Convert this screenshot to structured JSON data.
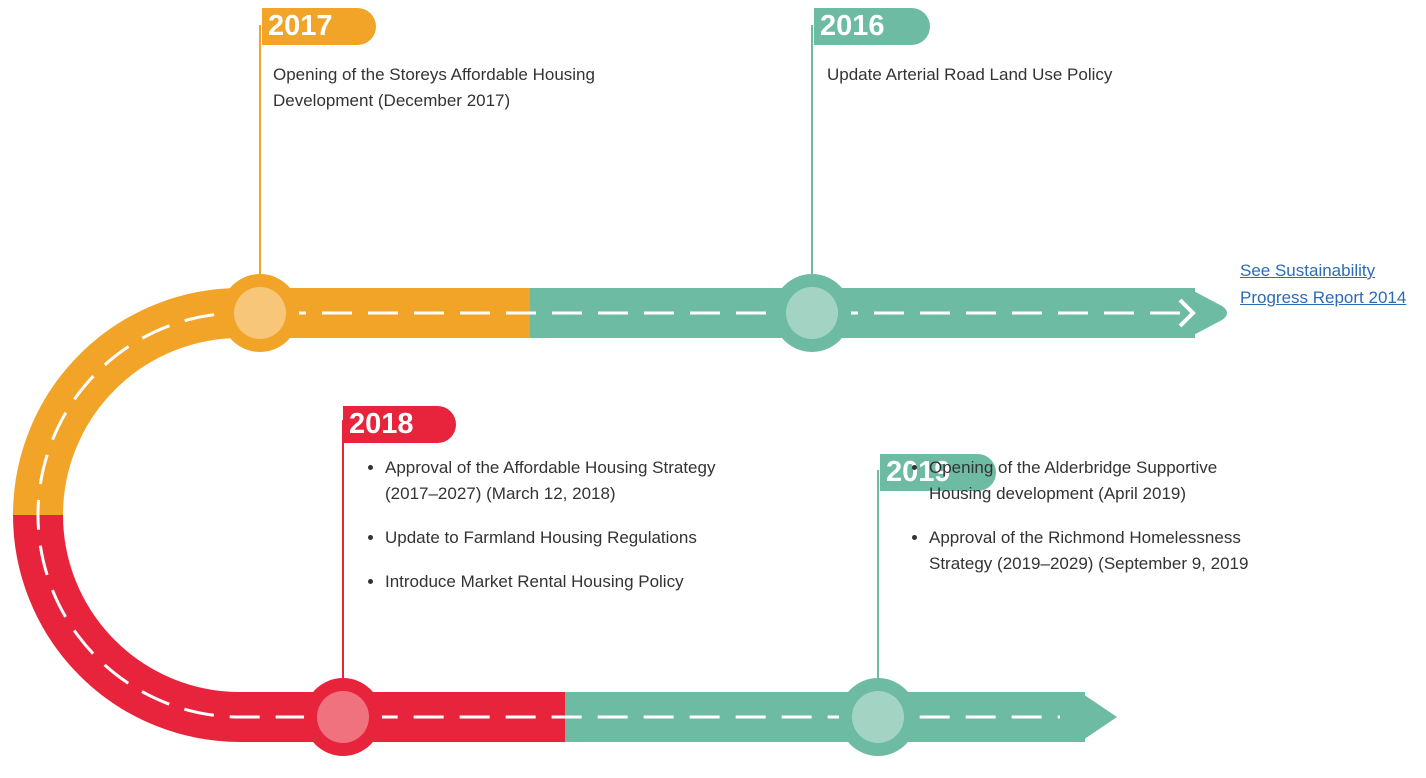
{
  "milestones": [
    {
      "year": "2017",
      "items": [
        "Opening of the Storeys Affordable Housing Development (December 2017)"
      ]
    },
    {
      "year": "2016",
      "items": [
        "Update Arterial Road Land Use Policy"
      ]
    },
    {
      "year": "2018",
      "items": [
        "Approval of the Affordable Housing Strategy (2017–2027) (March 12, 2018)",
        "Update to Farmland Housing Regulations",
        "Introduce Market Rental Housing Policy"
      ]
    },
    {
      "year": "2019",
      "items": [
        "Opening of the Alderbridge Supportive Housing development (April 2019)",
        "Approval of the Richmond Homelessness Strategy (2019–2029) (September 9, 2019"
      ]
    }
  ],
  "link": "See Sustainability Progress Report 2014"
}
